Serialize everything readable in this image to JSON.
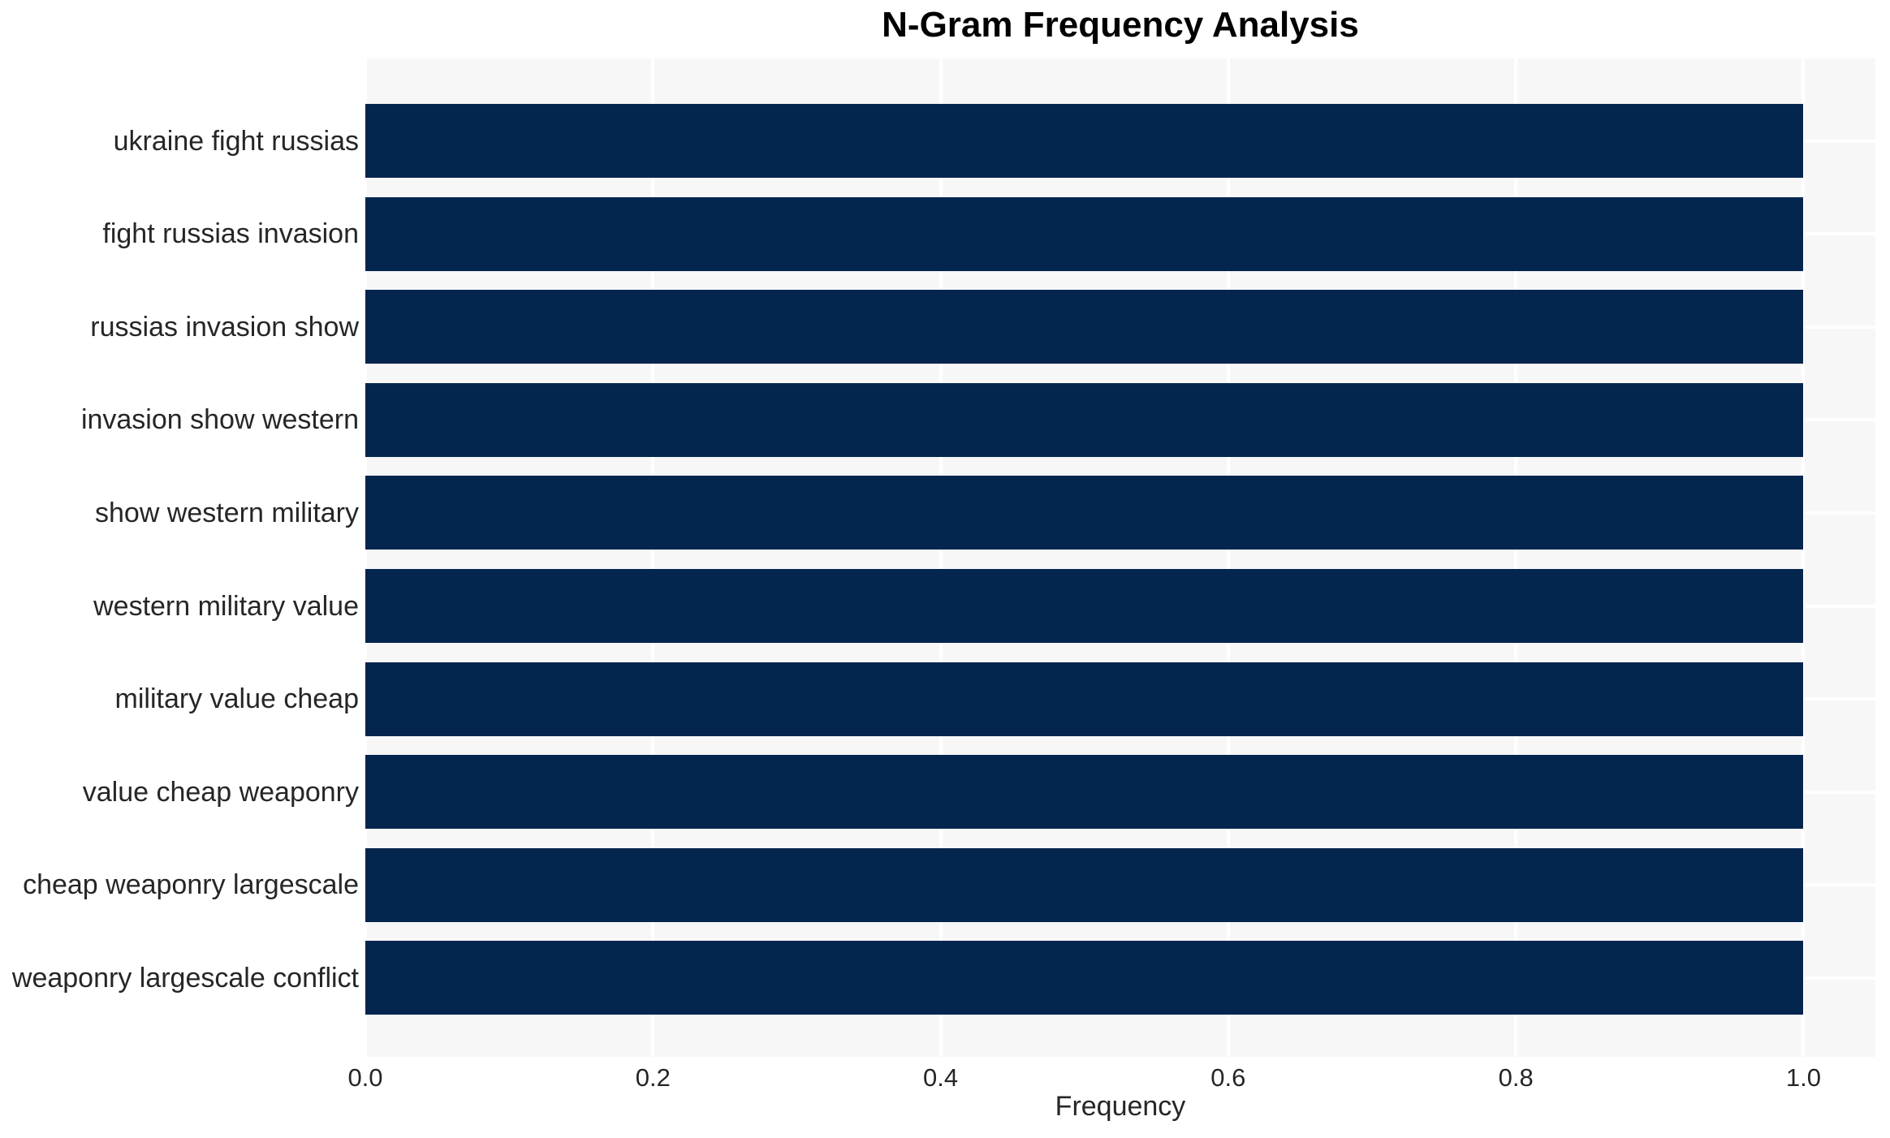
{
  "chart_data": {
    "type": "bar",
    "orientation": "horizontal",
    "title": "N-Gram Frequency Analysis",
    "xlabel": "Frequency",
    "ylabel": "",
    "categories": [
      "ukraine fight russias",
      "fight russias invasion",
      "russias invasion show",
      "invasion show western",
      "show western military",
      "western military value",
      "military value cheap",
      "value cheap weaponry",
      "cheap weaponry largescale",
      "weaponry largescale conflict"
    ],
    "values": [
      1.0,
      1.0,
      1.0,
      1.0,
      1.0,
      1.0,
      1.0,
      1.0,
      1.0,
      1.0
    ],
    "xlim": [
      0,
      1.05
    ],
    "xticks": [
      0.0,
      0.2,
      0.4,
      0.6,
      0.8,
      1.0
    ],
    "xtick_labels": [
      "0.0",
      "0.2",
      "0.4",
      "0.6",
      "0.8",
      "1.0"
    ],
    "grid": "white-major-both-axes",
    "legend": null,
    "colors": {
      "bar": "#03254e",
      "plot_bg": "#f7f7f8",
      "grid": "#ffffff",
      "text": "#262626",
      "title": "#000000"
    }
  }
}
